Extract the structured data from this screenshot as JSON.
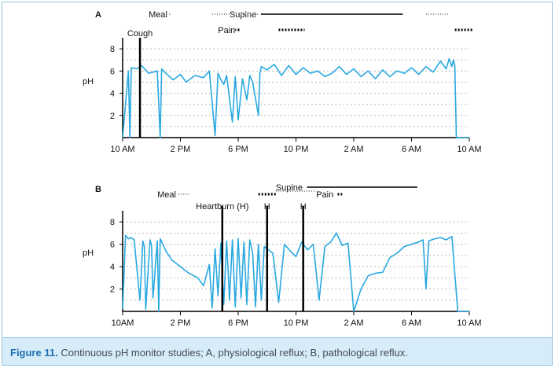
{
  "caption": {
    "label": "Figure 11.",
    "text": " Continuous pH monitor studies; A, physiological reflux; B, pathological reflux."
  },
  "colors": {
    "trace": "#29a8e0",
    "border": "#8fc3e0",
    "caption_bg": "#d7ecf9",
    "caption_label": "#1f6fb2",
    "grid": "#bbbbbb"
  },
  "chart_data": [
    {
      "type": "line",
      "panel_label": "A",
      "ylabel": "pH",
      "yticks": [
        2,
        4,
        6,
        8
      ],
      "ylim": [
        0,
        9
      ],
      "xlim": [
        10,
        34
      ],
      "xtick_values": [
        10,
        14,
        18,
        22,
        26,
        30,
        34
      ],
      "xtick_labels": [
        "10 AM",
        "2 PM",
        "6 PM",
        "10 PM",
        "2 AM",
        "6 AM",
        "10 AM"
      ],
      "grid": "dotted horizontal",
      "x": [
        10.0,
        10.4,
        10.5,
        10.6,
        11.0,
        11.3,
        11.8,
        12.4,
        12.6,
        12.7,
        12.9,
        13.5,
        14.0,
        14.4,
        15.0,
        15.6,
        16.0,
        16.4,
        16.6,
        16.8,
        17.0,
        17.2,
        17.6,
        17.8,
        18.0,
        18.3,
        18.6,
        18.8,
        19.0,
        19.4,
        19.5,
        19.6,
        20.0,
        20.5,
        21.0,
        21.5,
        22.0,
        22.5,
        23.0,
        23.5,
        24.0,
        24.5,
        25.0,
        25.5,
        26.0,
        26.5,
        27.0,
        27.5,
        28.0,
        28.5,
        29.0,
        29.5,
        30.0,
        30.5,
        31.0,
        31.5,
        32.0,
        32.4,
        32.6,
        32.8,
        32.9,
        33.0,
        33.1,
        34.0
      ],
      "y": [
        0.0,
        6.0,
        0.0,
        6.3,
        6.2,
        6.5,
        5.8,
        6.0,
        0.0,
        6.2,
        5.9,
        5.2,
        5.7,
        5.0,
        5.6,
        5.4,
        6.0,
        0.2,
        5.8,
        5.2,
        4.8,
        5.6,
        1.4,
        5.5,
        1.6,
        5.3,
        3.4,
        5.6,
        5.0,
        2.0,
        5.8,
        6.4,
        6.1,
        6.6,
        5.6,
        6.5,
        5.7,
        6.3,
        5.8,
        6.0,
        5.5,
        5.8,
        6.4,
        5.7,
        6.2,
        5.5,
        6.0,
        5.3,
        6.1,
        5.5,
        6.0,
        5.8,
        6.3,
        5.7,
        6.4,
        5.9,
        6.9,
        6.2,
        7.1,
        6.4,
        7.0,
        6.5,
        0.0,
        0.0
      ],
      "events": [
        {
          "label": "Cough",
          "x": 11.2
        }
      ],
      "annotations": [
        {
          "label": "Meal",
          "style": "dotted",
          "x_start": 11.8,
          "x_end": 13.2
        },
        {
          "label": "Supine",
          "style": "solid",
          "x_start": 17.4,
          "x_end": 29.4
        },
        {
          "label": "Pain",
          "style": "asterisk",
          "x_start": 16.6,
          "x_end": 17.8
        },
        {
          "label": "",
          "style": "dotted",
          "x_start": 16.2,
          "x_end": 19.4
        },
        {
          "label": "",
          "style": "asterisk",
          "x_start": 20.8,
          "x_end": 22.6
        },
        {
          "label": "",
          "style": "dotted",
          "x_start": 31.0,
          "x_end": 32.6
        },
        {
          "label": "",
          "style": "asterisk",
          "x_start": 33.0,
          "x_end": 34.2
        }
      ]
    },
    {
      "type": "line",
      "panel_label": "B",
      "ylabel": "pH",
      "yticks": [
        2,
        4,
        6,
        8
      ],
      "ylim": [
        0,
        9
      ],
      "xlim": [
        10,
        34
      ],
      "xtick_values": [
        10,
        14,
        18,
        22,
        26,
        30,
        34
      ],
      "xtick_labels": [
        "10AM",
        "2 PM",
        "6 PM",
        "10 PM",
        "2 AM",
        "6 AM",
        "10 AM"
      ],
      "grid": "dotted horizontal",
      "x": [
        10.0,
        10.2,
        10.4,
        10.6,
        10.8,
        11.2,
        11.4,
        11.5,
        11.6,
        11.9,
        12.0,
        12.1,
        12.4,
        12.5,
        12.6,
        13.0,
        13.4,
        14.0,
        14.6,
        15.2,
        15.6,
        16.0,
        16.2,
        16.4,
        16.6,
        16.8,
        17.0,
        17.2,
        17.4,
        17.6,
        17.8,
        18.0,
        18.2,
        18.4,
        18.6,
        18.8,
        19.0,
        19.2,
        19.4,
        19.6,
        19.8,
        20.0,
        20.4,
        20.8,
        21.2,
        21.6,
        22.0,
        22.4,
        22.8,
        23.2,
        23.6,
        24.0,
        24.4,
        24.8,
        25.2,
        25.6,
        26.0,
        26.5,
        27.0,
        27.5,
        28.0,
        28.5,
        29.0,
        29.5,
        30.0,
        30.5,
        30.8,
        31.0,
        31.2,
        31.6,
        32.0,
        32.4,
        32.8,
        33.2,
        34.0
      ],
      "y": [
        0.2,
        6.8,
        6.5,
        6.6,
        6.4,
        1.0,
        6.3,
        5.8,
        0.2,
        6.4,
        5.9,
        1.2,
        6.3,
        0.0,
        6.5,
        5.4,
        4.6,
        4.0,
        3.4,
        3.0,
        2.3,
        4.2,
        0.3,
        5.6,
        1.4,
        6.1,
        0.6,
        6.3,
        1.0,
        6.4,
        0.4,
        6.5,
        1.2,
        6.2,
        0.6,
        6.4,
        5.2,
        0.4,
        6.0,
        1.0,
        5.8,
        5.6,
        5.2,
        0.8,
        6.0,
        5.4,
        4.9,
        6.2,
        5.5,
        6.0,
        1.0,
        5.8,
        6.2,
        7.0,
        5.9,
        6.1,
        0.0,
        2.0,
        3.2,
        3.4,
        3.5,
        4.8,
        5.2,
        5.8,
        6.0,
        6.2,
        6.4,
        2.0,
        6.3,
        6.5,
        6.6,
        6.4,
        6.7,
        0.0,
        0.0
      ],
      "events": [
        {
          "label": "Heartburn (H)",
          "x": 16.9
        },
        {
          "label": "H",
          "x": 20.0
        },
        {
          "label": "H",
          "x": 22.5
        }
      ],
      "annotations": [
        {
          "label": "Meal",
          "style": "dotted",
          "x_start": 12.4,
          "x_end": 14.6
        },
        {
          "label": "",
          "style": "asterisk",
          "x_start": 19.4,
          "x_end": 20.6
        },
        {
          "label": "Supine",
          "style": "solid",
          "x_start": 20.6,
          "x_end": 30.4
        },
        {
          "label": "Pain",
          "style": "asterisk",
          "x_start": 23.4,
          "x_end": 25.2
        },
        {
          "label": "",
          "style": "dotted",
          "x_start": 20.6,
          "x_end": 23.4
        }
      ]
    }
  ]
}
